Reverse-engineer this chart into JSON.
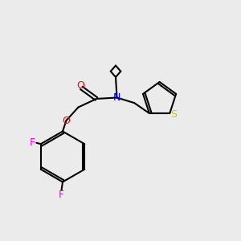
{
  "bg_color": "#ebebeb",
  "bond_color": "#000000",
  "bond_lw": 1.5,
  "atom_colors": {
    "N": "#0000ff",
    "O": "#ff0000",
    "F": "#ff00ff",
    "S": "#cccc00",
    "C": "#000000"
  },
  "font_size": 9,
  "font_size_small": 8
}
